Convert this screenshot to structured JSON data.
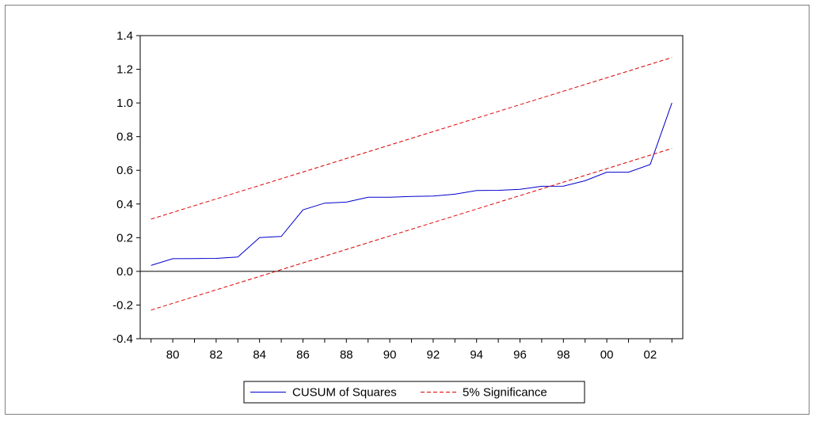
{
  "chart_data": {
    "type": "line",
    "title": "",
    "xlabel": "",
    "ylabel": "",
    "xlim": [
      1978.5,
      2003.5
    ],
    "ylim": [
      -0.4,
      1.4
    ],
    "yticks": [
      -0.4,
      -0.2,
      0.0,
      0.2,
      0.4,
      0.6,
      0.8,
      1.0,
      1.2,
      1.4
    ],
    "ytick_labels": [
      "-0.4",
      "-0.2",
      "0.0",
      "0.2",
      "0.4",
      "0.6",
      "0.8",
      "1.0",
      "1.2",
      "1.4"
    ],
    "xticks": [
      1980,
      1982,
      1984,
      1986,
      1988,
      1990,
      1992,
      1994,
      1996,
      1998,
      2000,
      2002
    ],
    "xtick_labels": [
      "80",
      "82",
      "84",
      "86",
      "88",
      "90",
      "92",
      "94",
      "96",
      "98",
      "00",
      "02"
    ],
    "zero_line": true,
    "grid": false,
    "legend_position": "bottom-center",
    "series": [
      {
        "name": "CUSUM of Squares",
        "color": "#0000cc",
        "style": "solid",
        "x": [
          1979,
          1980,
          1981,
          1982,
          1983,
          1984,
          1985,
          1986,
          1987,
          1988,
          1989,
          1990,
          1991,
          1992,
          1993,
          1994,
          1995,
          1996,
          1997,
          1998,
          1999,
          2000,
          2001,
          2002,
          2003
        ],
        "y": [
          0.035,
          0.075,
          0.076,
          0.077,
          0.085,
          0.2,
          0.207,
          0.365,
          0.405,
          0.411,
          0.44,
          0.44,
          0.445,
          0.447,
          0.458,
          0.48,
          0.481,
          0.487,
          0.505,
          0.506,
          0.538,
          0.589,
          0.589,
          0.635,
          1.0
        ]
      },
      {
        "name": "5% Significance",
        "color": "#dd0000",
        "style": "dashed",
        "x": [
          1979,
          2003
        ],
        "y": [
          0.31,
          1.27
        ]
      },
      {
        "name": "",
        "color": "#dd0000",
        "style": "dashed",
        "x": [
          1979,
          2003
        ],
        "y": [
          -0.23,
          0.73
        ]
      }
    ]
  }
}
